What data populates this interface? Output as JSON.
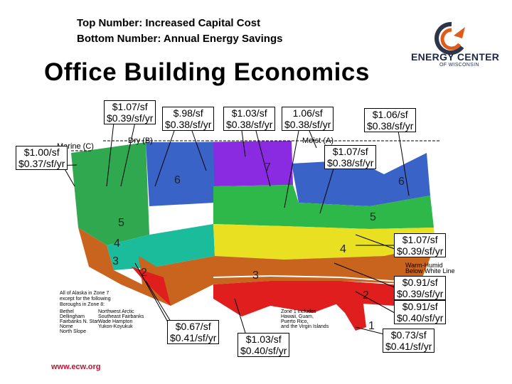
{
  "legend": {
    "top": "Top Number: Increased Capital Cost",
    "bottom": "Bottom Number: Annual Energy Savings"
  },
  "title": "Office Building Economics",
  "logo": {
    "name": "ENERGY CENTER",
    "sub": "OF WISCONSIN"
  },
  "website": "www.ecw.org",
  "map_labels": {
    "marine": "Marine (C)",
    "dry": "Dry (B)",
    "moist": "Moist (A)",
    "warm_humid_1": "Warm-Humid",
    "warm_humid_2": "Below White Line",
    "zone_numbers": [
      "7",
      "6",
      "5",
      "4",
      "3",
      "2",
      "1",
      "5",
      "4",
      "3",
      "2",
      "6"
    ]
  },
  "alaska_note": {
    "lines": [
      "All of Alaska in Zone 7",
      "except for the following",
      "Boroughs in Zone 8:"
    ],
    "col1": [
      "Bethel",
      "Dellingham",
      "Fairbanks N. Star",
      "Nome",
      "North Slope"
    ],
    "col2": [
      "Northwest Arctic",
      "Southeast Fairbanks",
      "Wade Hampton",
      "Yukon-Koyukuk"
    ]
  },
  "zone1_note": [
    "Zone 1 includes",
    "Hawaii, Guam,",
    "Puerto Rico,",
    "and the Virgin Islands"
  ],
  "callouts": [
    {
      "id": "c1",
      "top": "$1.07/sf",
      "bottom": "$0.39/sf/yr"
    },
    {
      "id": "c2",
      "top": "$.98/sf",
      "bottom": "$0.38/sf/yr"
    },
    {
      "id": "c3",
      "top": "$1.03/sf",
      "bottom": "$0.38/sf/yr"
    },
    {
      "id": "c4",
      "top": "1.06/sf",
      "bottom": "$0.38/sf/yr"
    },
    {
      "id": "c5",
      "top": "$1.06/sf",
      "bottom": "$0.38/sf/yr"
    },
    {
      "id": "c6",
      "top": "$1.00/sf",
      "bottom": "$0.37/sf/yr"
    },
    {
      "id": "c7",
      "top": "$1.07/sf",
      "bottom": "$0.38/sf/yr"
    },
    {
      "id": "c8",
      "top": "$1.07/sf",
      "bottom": "$0.39/sf/yr"
    },
    {
      "id": "c9",
      "top": "$0.91/sf",
      "bottom": "$0.39/sf/yr"
    },
    {
      "id": "c10",
      "top": "$0.91/sf",
      "bottom": "$0.40/sf/yr"
    },
    {
      "id": "c11",
      "top": "$0.67/sf",
      "bottom": "$0.41/sf/yr"
    },
    {
      "id": "c12",
      "top": "$1.03/sf",
      "bottom": "$0.40/sf/yr"
    },
    {
      "id": "c13",
      "top": "$0.73/sf",
      "bottom": "$0.41/sf/yr"
    }
  ]
}
